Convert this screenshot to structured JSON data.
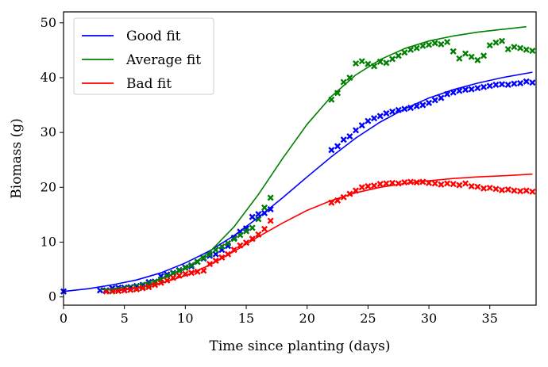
{
  "chart_data": {
    "type": "scatter",
    "title": "",
    "xlabel": "Time since planting (days)",
    "ylabel": "Biomass (g)",
    "xlim": [
      0,
      38.8
    ],
    "ylim": [
      -1.5,
      52
    ],
    "xticks": [
      0,
      5,
      10,
      15,
      20,
      25,
      30,
      35
    ],
    "yticks": [
      0,
      10,
      20,
      30,
      40,
      50
    ],
    "grid": false,
    "legend_position": "top-left",
    "colors": {
      "Good fit": "#0000ff",
      "Average fit": "#008000",
      "Bad fit": "#ff0000"
    },
    "series": [
      {
        "name": "Good fit",
        "curve": {
          "x": [
            0,
            2,
            4,
            6,
            8,
            10,
            12,
            14,
            16,
            18,
            20,
            22,
            24,
            26,
            28,
            30,
            32,
            34,
            36,
            38.5
          ],
          "y": [
            1.0,
            1.5,
            2.2,
            3.1,
            4.4,
            6.2,
            8.4,
            11.2,
            14.5,
            18.1,
            21.9,
            25.6,
            29.0,
            31.9,
            34.3,
            36.3,
            37.8,
            39.0,
            40.0,
            41.0
          ]
        },
        "points": {
          "x": [
            0,
            3,
            3.5,
            4,
            4.5,
            5,
            5.5,
            6,
            6.5,
            7,
            7.5,
            8,
            8.5,
            9,
            9.5,
            10,
            10.5,
            11,
            11.5,
            12,
            12.5,
            13,
            13.5,
            14,
            14.5,
            15,
            15.5,
            16,
            16.5,
            17,
            22,
            22.5,
            23,
            23.5,
            24,
            24.5,
            25,
            25.5,
            26,
            26.5,
            27,
            27.5,
            28,
            28.5,
            29,
            29.5,
            30,
            30.5,
            31,
            31.5,
            32,
            32.5,
            33,
            33.5,
            34,
            34.5,
            35,
            35.5,
            36,
            36.5,
            37,
            37.5,
            38,
            38.5
          ],
          "y": [
            1.0,
            1.2,
            1.2,
            1.6,
            1.7,
            1.7,
            1.8,
            2.0,
            2.2,
            2.7,
            2.8,
            3.8,
            4.1,
            4.4,
            4.9,
            5.4,
            5.6,
            6.4,
            7.0,
            7.5,
            7.8,
            8.6,
            9.3,
            10.8,
            11.9,
            12.5,
            14.6,
            15.1,
            15.3,
            16.0,
            26.8,
            27.5,
            28.7,
            29.3,
            30.4,
            31.3,
            32.1,
            32.6,
            33.0,
            33.5,
            33.8,
            34.1,
            34.3,
            34.5,
            34.8,
            35.0,
            35.4,
            35.9,
            36.3,
            37.0,
            37.3,
            37.6,
            37.8,
            37.9,
            38.1,
            38.3,
            38.5,
            38.7,
            38.8,
            38.7,
            38.9,
            39.0,
            39.3,
            39.1
          ]
        }
      },
      {
        "name": "Average fit",
        "curve": {
          "x": [
            3,
            4,
            6,
            8,
            10,
            12,
            14,
            16,
            18,
            20,
            22,
            24,
            26,
            28,
            30,
            32,
            34,
            36,
            38
          ],
          "y": [
            1.3,
            1.5,
            2.2,
            3.3,
            5.1,
            8.2,
            12.8,
            18.7,
            25.3,
            31.5,
            36.6,
            40.5,
            43.3,
            45.3,
            46.7,
            47.6,
            48.3,
            48.8,
            49.3
          ]
        },
        "points": {
          "x": [
            4,
            4.5,
            5,
            5.5,
            6,
            6.5,
            7,
            7.5,
            8,
            8.5,
            9,
            9.5,
            10,
            10.5,
            11,
            11.5,
            12,
            12.5,
            13,
            13.5,
            14,
            14.5,
            15,
            15.5,
            16,
            16.5,
            17,
            22,
            22.5,
            23,
            23.5,
            24,
            24.5,
            25,
            25.5,
            26,
            26.5,
            27,
            27.5,
            28,
            28.5,
            29,
            29.5,
            30,
            30.5,
            31,
            31.5,
            32,
            32.5,
            33,
            33.5,
            34,
            34.5,
            35,
            35.5,
            36,
            36.5,
            37,
            37.5,
            38,
            38.5
          ],
          "y": [
            1.0,
            1.1,
            1.2,
            1.3,
            1.5,
            1.8,
            2.2,
            2.6,
            3.2,
            3.8,
            4.3,
            4.8,
            5.3,
            5.8,
            6.4,
            7.1,
            7.8,
            8.6,
            9.2,
            9.8,
            10.6,
            11.3,
            12.0,
            12.6,
            14.2,
            16.3,
            18.1,
            36.0,
            37.2,
            39.2,
            40.0,
            42.6,
            43.0,
            42.5,
            42.1,
            42.9,
            42.7,
            43.4,
            44.0,
            44.6,
            45.1,
            45.4,
            45.8,
            46.0,
            46.3,
            46.1,
            46.5,
            44.8,
            43.5,
            44.4,
            43.8,
            43.2,
            44.0,
            45.9,
            46.4,
            46.7,
            45.2,
            45.6,
            45.4,
            45.1,
            44.9
          ]
        }
      },
      {
        "name": "Bad fit",
        "curve": {
          "x": [
            4,
            6,
            8,
            10,
            12,
            14,
            16,
            18,
            20,
            22,
            24,
            26,
            28,
            30,
            32,
            34,
            36,
            38.5
          ],
          "y": [
            1.0,
            1.6,
            2.5,
            3.9,
            5.8,
            8.3,
            11.0,
            13.5,
            15.8,
            17.6,
            19.0,
            20.0,
            20.7,
            21.2,
            21.6,
            21.9,
            22.1,
            22.4
          ]
        },
        "points": {
          "x": [
            3.5,
            4,
            4.5,
            5,
            5.5,
            6,
            6.5,
            7,
            7.5,
            8,
            8.5,
            9,
            9.5,
            10,
            10.5,
            11,
            11.5,
            12,
            12.5,
            13,
            13.5,
            14,
            14.5,
            15,
            15.5,
            16,
            16.5,
            17,
            22,
            22.5,
            23,
            23.5,
            24,
            24.5,
            25,
            25.5,
            26,
            26.5,
            27,
            27.5,
            28,
            28.5,
            29,
            29.5,
            30,
            30.5,
            31,
            31.5,
            32,
            32.5,
            33,
            33.5,
            34,
            34.5,
            35,
            35.5,
            36,
            36.5,
            37,
            37.5,
            38,
            38.5
          ],
          "y": [
            1.0,
            1.1,
            1.1,
            1.2,
            1.3,
            1.4,
            1.6,
            1.8,
            2.2,
            2.6,
            3.0,
            3.5,
            3.9,
            4.2,
            4.4,
            4.6,
            4.8,
            6.0,
            6.6,
            7.2,
            7.8,
            8.6,
            9.4,
            9.9,
            10.6,
            11.4,
            12.4,
            13.9,
            17.2,
            17.6,
            18.2,
            18.8,
            19.4,
            20.0,
            20.2,
            20.3,
            20.6,
            20.7,
            20.8,
            20.7,
            20.9,
            21.0,
            20.9,
            21.0,
            20.8,
            20.7,
            20.5,
            20.7,
            20.6,
            20.4,
            20.7,
            20.2,
            20.1,
            19.8,
            19.9,
            19.7,
            19.5,
            19.6,
            19.4,
            19.3,
            19.4,
            19.2
          ]
        }
      }
    ]
  }
}
